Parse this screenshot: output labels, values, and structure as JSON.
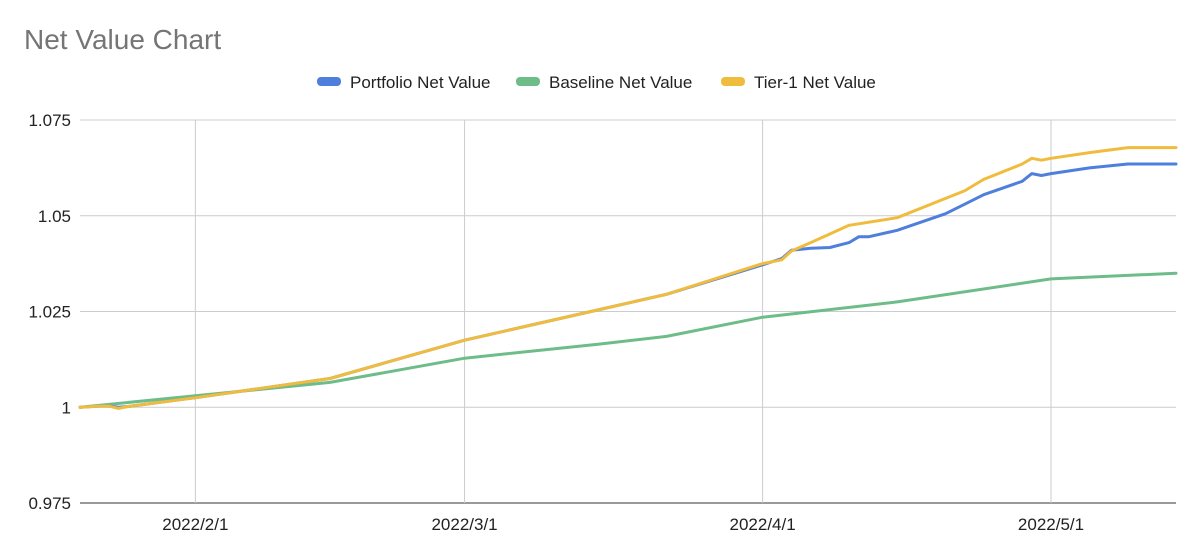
{
  "chart_data": {
    "type": "line",
    "title": "Net Value Chart",
    "xlabel": "",
    "ylabel": "",
    "x_range": [
      "2022-01-20",
      "2022-05-14"
    ],
    "ylim": [
      0.975,
      1.075
    ],
    "y_ticks": [
      {
        "value": 0.975,
        "label": "0.975"
      },
      {
        "value": 1.0,
        "label": "1"
      },
      {
        "value": 1.025,
        "label": "1.025"
      },
      {
        "value": 1.05,
        "label": "1.05"
      },
      {
        "value": 1.075,
        "label": "1.075"
      }
    ],
    "x_ticks": [
      {
        "value": "2022-02-01",
        "label": "2022/2/1"
      },
      {
        "value": "2022-03-01",
        "label": "2022/3/1"
      },
      {
        "value": "2022-04-01",
        "label": "2022/4/1"
      },
      {
        "value": "2022-05-01",
        "label": "2022/5/1"
      }
    ],
    "grid": true,
    "legend_position": "top",
    "series": [
      {
        "name": "Baseline Net Value",
        "color": "#6ebc8a",
        "points": [
          [
            "2022-01-20",
            1.0
          ],
          [
            "2022-02-01",
            1.003
          ],
          [
            "2022-02-15",
            1.0065
          ],
          [
            "2022-03-01",
            1.0128
          ],
          [
            "2022-03-15",
            1.0165
          ],
          [
            "2022-03-22",
            1.0185
          ],
          [
            "2022-04-01",
            1.0235
          ],
          [
            "2022-04-15",
            1.0275
          ],
          [
            "2022-05-01",
            1.0335
          ],
          [
            "2022-05-14",
            1.035
          ]
        ]
      },
      {
        "name": "Portfolio Net Value",
        "color": "#4f7fdc",
        "points": [
          [
            "2022-01-20",
            1.0
          ],
          [
            "2022-01-22",
            1.0003
          ],
          [
            "2022-01-23",
            1.0003
          ],
          [
            "2022-01-24",
            1.0
          ],
          [
            "2022-01-25",
            1.0002
          ],
          [
            "2022-02-01",
            1.0025
          ],
          [
            "2022-02-15",
            1.0075
          ],
          [
            "2022-03-01",
            1.0175
          ],
          [
            "2022-03-15",
            1.0255
          ],
          [
            "2022-03-22",
            1.0295
          ],
          [
            "2022-04-01",
            1.0372
          ],
          [
            "2022-04-03",
            1.0388
          ],
          [
            "2022-04-04",
            1.041
          ],
          [
            "2022-04-06",
            1.0415
          ],
          [
            "2022-04-08",
            1.0417
          ],
          [
            "2022-04-10",
            1.043
          ],
          [
            "2022-04-11",
            1.0445
          ],
          [
            "2022-04-12",
            1.0445
          ],
          [
            "2022-04-15",
            1.0462
          ],
          [
            "2022-04-20",
            1.0505
          ],
          [
            "2022-04-22",
            1.053
          ],
          [
            "2022-04-24",
            1.0555
          ],
          [
            "2022-04-28",
            1.059
          ],
          [
            "2022-04-29",
            1.061
          ],
          [
            "2022-04-30",
            1.0605
          ],
          [
            "2022-05-01",
            1.061
          ],
          [
            "2022-05-05",
            1.0625
          ],
          [
            "2022-05-09",
            1.0635
          ],
          [
            "2022-05-14",
            1.0635
          ]
        ]
      },
      {
        "name": "Tier-1 Net Value",
        "color": "#f0bc3e",
        "points": [
          [
            "2022-01-20",
            1.0
          ],
          [
            "2022-01-22",
            1.0003
          ],
          [
            "2022-01-23",
            1.0003
          ],
          [
            "2022-01-24",
            0.9997
          ],
          [
            "2022-01-25",
            1.0002
          ],
          [
            "2022-02-01",
            1.0025
          ],
          [
            "2022-02-15",
            1.0075
          ],
          [
            "2022-03-01",
            1.0175
          ],
          [
            "2022-03-15",
            1.0255
          ],
          [
            "2022-03-22",
            1.0295
          ],
          [
            "2022-04-01",
            1.0375
          ],
          [
            "2022-04-03",
            1.0385
          ],
          [
            "2022-04-04",
            1.0408
          ],
          [
            "2022-04-06",
            1.043
          ],
          [
            "2022-04-10",
            1.0475
          ],
          [
            "2022-04-15",
            1.0495
          ],
          [
            "2022-04-20",
            1.0545
          ],
          [
            "2022-04-22",
            1.0565
          ],
          [
            "2022-04-24",
            1.0595
          ],
          [
            "2022-04-28",
            1.0635
          ],
          [
            "2022-04-29",
            1.065
          ],
          [
            "2022-04-30",
            1.0645
          ],
          [
            "2022-05-01",
            1.065
          ],
          [
            "2022-05-05",
            1.0665
          ],
          [
            "2022-05-09",
            1.0678
          ],
          [
            "2022-05-14",
            1.0678
          ]
        ]
      }
    ],
    "legend_order": [
      "Portfolio Net Value",
      "Baseline Net Value",
      "Tier-1 Net Value"
    ]
  }
}
